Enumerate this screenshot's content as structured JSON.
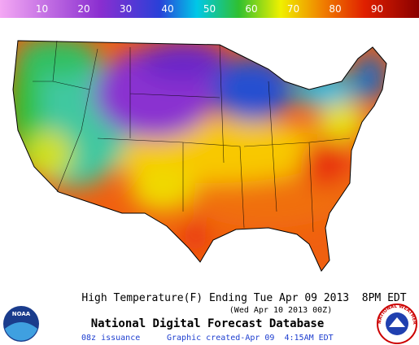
{
  "colorbar": {
    "ticks": [
      10,
      20,
      30,
      40,
      50,
      60,
      70,
      80,
      90
    ]
  },
  "title": "High Temperature(F) Ending Tue Apr 09 2013  8PM EDT",
  "subtitle": "(Wed Apr 10 2013 00Z)",
  "heading": "National Digital Forecast Database",
  "issuance": "08z issuance",
  "created": "Graphic created-Apr 09  4:15AM EDT",
  "logos": {
    "noaa": "NOAA",
    "nws": "NATIONAL WEATHER SERVICE"
  }
}
